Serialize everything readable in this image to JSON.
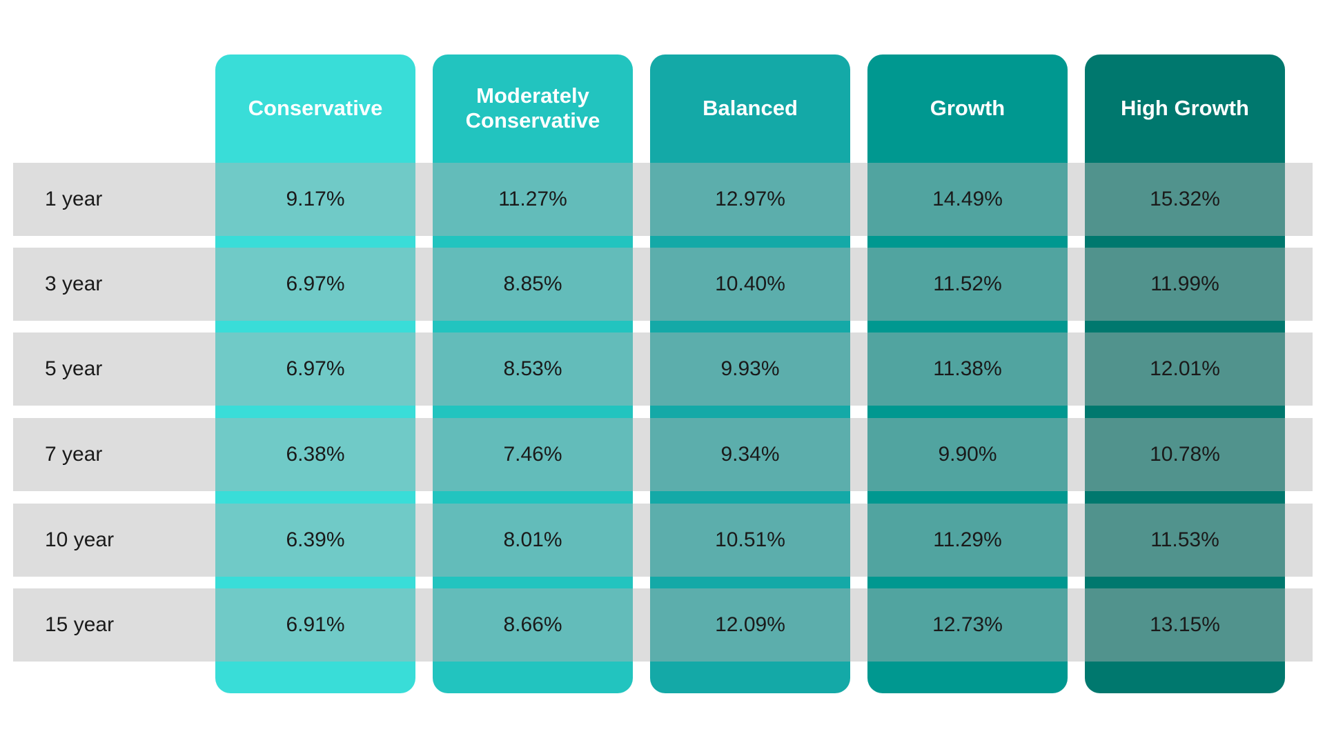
{
  "chart_data": {
    "type": "table",
    "columns": [
      {
        "name": "Conservative",
        "color": "#39DDD8"
      },
      {
        "name": "Moderately Conservative",
        "color": "#22C4BF"
      },
      {
        "name": "Balanced",
        "color": "#14A9A7"
      },
      {
        "name": "Growth",
        "color": "#009890"
      },
      {
        "name": "High Growth",
        "color": "#00786E"
      }
    ],
    "rows": [
      {
        "label": "1 year",
        "values": [
          "9.17%",
          "11.27%",
          "12.97%",
          "14.49%",
          "15.32%"
        ]
      },
      {
        "label": "3 year",
        "values": [
          "6.97%",
          "8.85%",
          "10.40%",
          "11.52%",
          "11.99%"
        ]
      },
      {
        "label": "5 year",
        "values": [
          "6.97%",
          "8.53%",
          "9.93%",
          "11.38%",
          "12.01%"
        ]
      },
      {
        "label": "7 year",
        "values": [
          "6.38%",
          "7.46%",
          "9.34%",
          "9.90%",
          "10.78%"
        ]
      },
      {
        "label": "10 year",
        "values": [
          "6.39%",
          "8.01%",
          "10.51%",
          "11.29%",
          "11.53%"
        ]
      },
      {
        "label": "15 year",
        "values": [
          "6.91%",
          "8.66%",
          "12.09%",
          "12.73%",
          "13.15%"
        ]
      }
    ],
    "row_band_color": "#DCDCDC"
  }
}
